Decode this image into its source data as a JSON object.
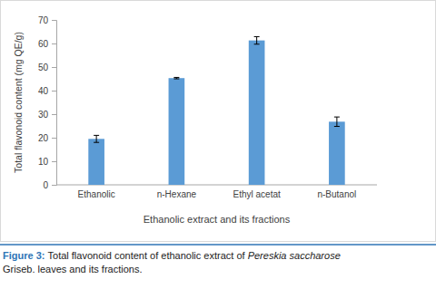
{
  "chart_data": {
    "type": "bar",
    "categories": [
      "Ethanolic",
      "n-Hexane",
      "Ethyl acetat",
      "n-Butanol"
    ],
    "values": [
      19.5,
      45.3,
      61.3,
      26.8
    ],
    "errors": [
      1.5,
      0.3,
      1.6,
      2.0
    ],
    "color": "#5b9bd5",
    "ylim": [
      0,
      70
    ],
    "yticks": [
      0,
      10,
      20,
      30,
      40,
      50,
      60,
      70
    ],
    "y_label": "Total flavonoid content (mg QE/g)",
    "x_label": "Ethanolic extract and its fractions",
    "caption_label": "Figure 3:",
    "caption": [
      "Total flavonoid content of ethanolic extract of",
      "Pereskia saccharose",
      "Griseb. leaves and its fractions."
    ],
    "grid": false
  }
}
